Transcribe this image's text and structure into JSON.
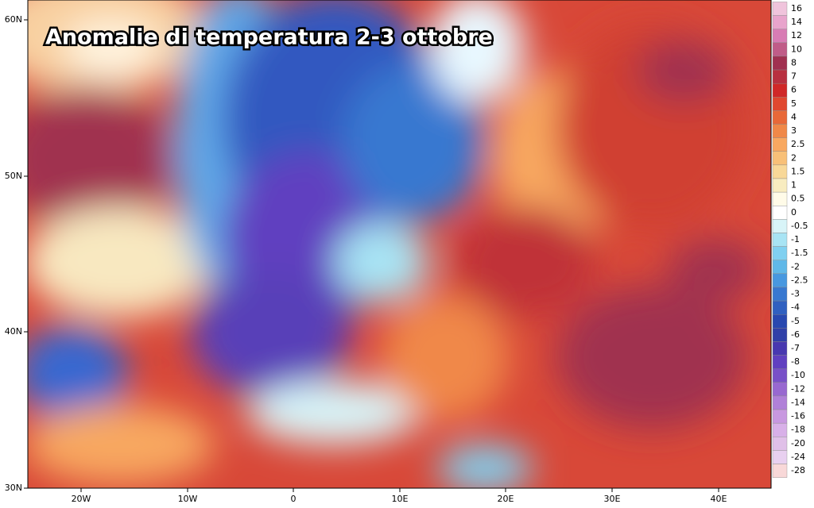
{
  "title": "Anomalie di temperatura 2-3 ottobre",
  "latitude_labels": [
    "60N",
    "50N",
    "40N",
    "30N"
  ],
  "longitude_labels": [
    "20W",
    "10W",
    "0",
    "10E",
    "20E",
    "30E",
    "40E"
  ],
  "colorbar": [
    {
      "label": "16",
      "color": "#f0c4dc"
    },
    {
      "label": "14",
      "color": "#e8a4cc"
    },
    {
      "label": "12",
      "color": "#d87cb4"
    },
    {
      "label": "10",
      "color": "#c05c88"
    },
    {
      "label": "8",
      "color": "#a03050"
    },
    {
      "label": "7",
      "color": "#b83040"
    },
    {
      "label": "6",
      "color": "#d02828"
    },
    {
      "label": "5",
      "color": "#e04830"
    },
    {
      "label": "4",
      "color": "#e86838"
    },
    {
      "label": "3",
      "color": "#f08848"
    },
    {
      "label": "2.5",
      "color": "#f8a860"
    },
    {
      "label": "2",
      "color": "#f8c078"
    },
    {
      "label": "1.5",
      "color": "#f8d898"
    },
    {
      "label": "1",
      "color": "#f8ecc0"
    },
    {
      "label": "0.5",
      "color": "#fffbe8"
    },
    {
      "label": "0",
      "color": "#ffffff"
    },
    {
      "label": "-0.5",
      "color": "#d8f4f8"
    },
    {
      "label": "-1",
      "color": "#a8e4f4"
    },
    {
      "label": "-1.5",
      "color": "#80d0f0"
    },
    {
      "label": "-2",
      "color": "#60b8e8"
    },
    {
      "label": "-2.5",
      "color": "#4898e0"
    },
    {
      "label": "-3",
      "color": "#3878d0"
    },
    {
      "label": "-4",
      "color": "#3060c0"
    },
    {
      "label": "-5",
      "color": "#2848b0"
    },
    {
      "label": "-6",
      "color": "#3040a8"
    },
    {
      "label": "-7",
      "color": "#4838b0"
    },
    {
      "label": "-8",
      "color": "#6040c0"
    },
    {
      "label": "-10",
      "color": "#7850c8"
    },
    {
      "label": "-12",
      "color": "#9868d0"
    },
    {
      "label": "-14",
      "color": "#b080d8"
    },
    {
      "label": "-16",
      "color": "#c898e0"
    },
    {
      "label": "-18",
      "color": "#d8b0e8"
    },
    {
      "label": "-20",
      "color": "#e0c0e8"
    },
    {
      "label": "-24",
      "color": "#e8d0f0"
    },
    {
      "label": "-28",
      "color": "#f8d8d8"
    }
  ]
}
